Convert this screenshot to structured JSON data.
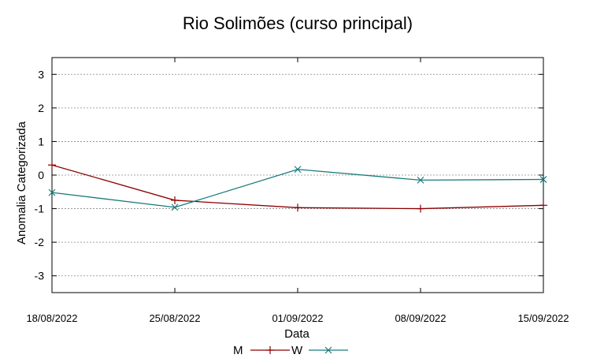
{
  "chart_data": {
    "type": "line",
    "title": "Rio Solimões (curso principal)",
    "xlabel": "Data",
    "ylabel": "Anomalia Categorizada",
    "categories": [
      "18/08/2022",
      "25/08/2022",
      "01/09/2022",
      "08/09/2022",
      "15/09/2022"
    ],
    "yticks": [
      "3",
      "2",
      "1",
      "0",
      "-1",
      "-2",
      "-3"
    ],
    "ylim": [
      -3.5,
      3.5
    ],
    "grid": true,
    "legend_position": "bottom",
    "series": [
      {
        "name": "M",
        "color": "#8b0000",
        "marker": "plus",
        "values": [
          0.3,
          -0.75,
          -0.97,
          -1.0,
          -0.9
        ]
      },
      {
        "name": "W",
        "color": "#1a7a7a",
        "marker": "cross",
        "values": [
          -0.52,
          -0.96,
          0.17,
          -0.15,
          -0.13
        ]
      }
    ]
  }
}
